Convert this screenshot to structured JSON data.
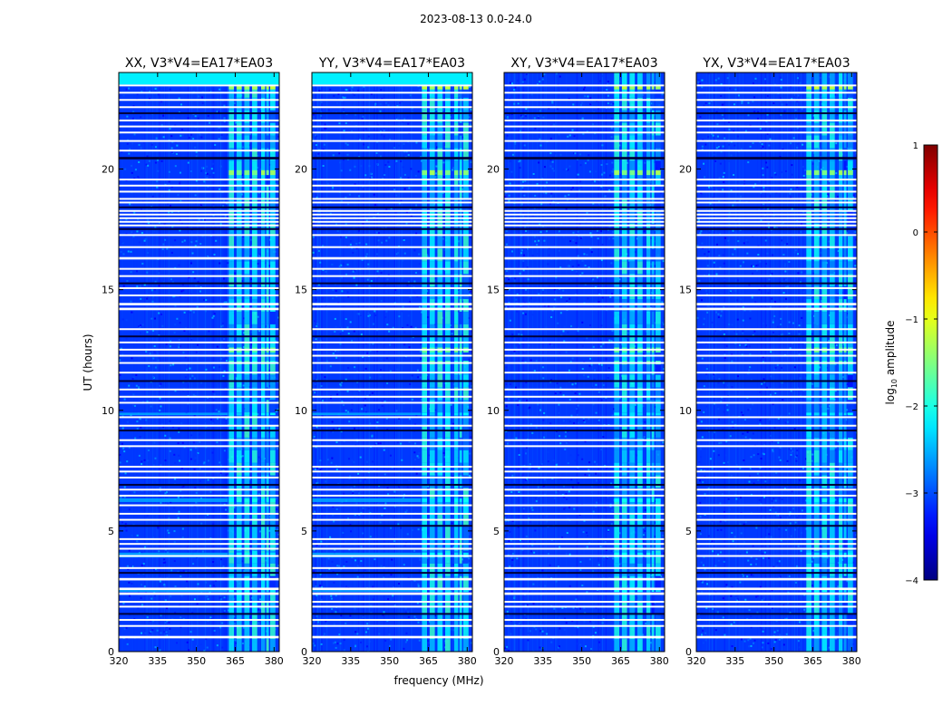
{
  "figure": {
    "suptitle": "2023-08-13 0.0-24.0"
  },
  "chart_data": {
    "type": "heatmap",
    "title": "2023-08-13 0.0-24.0",
    "xlabel": "frequency (MHz)",
    "ylabel": "UT (hours)",
    "xlim": [
      320,
      382
    ],
    "ylim": [
      0,
      24
    ],
    "xticks": [
      320,
      335,
      350,
      365,
      380
    ],
    "yticks": [
      0,
      5,
      10,
      15,
      20
    ],
    "panels": [
      {
        "title": "XX, V3*V4=EA17*EA03",
        "pol": "XX"
      },
      {
        "title": "YY, V3*V4=EA17*EA03",
        "pol": "YY"
      },
      {
        "title": "XY, V3*V4=EA17*EA03",
        "pol": "XY"
      },
      {
        "title": "YX, V3*V4=EA17*EA03",
        "pol": "YX"
      }
    ],
    "colorbar": {
      "label": "log10 amplitude",
      "label_main": "log",
      "label_sub": "10",
      "label_rest": " amplitude",
      "range": [
        -4,
        1
      ],
      "ticks": [
        1,
        0,
        -1,
        -2,
        -3,
        -4
      ],
      "tick_labels": [
        "1",
        "0",
        "−1",
        "−2",
        "−3",
        "−4"
      ],
      "colormap": "jet"
    },
    "background_level": -3.1,
    "rfi_bands_mhz": [
      [
        362.5,
        364.5
      ],
      [
        365.5,
        367.5
      ],
      [
        368.5,
        370.5
      ],
      [
        371.5,
        373.5
      ],
      [
        375.0,
        376.5
      ],
      [
        377.0,
        378.0
      ],
      [
        378.5,
        380.5
      ]
    ],
    "flagged_hours": [
      [
        0.55,
        0.65
      ],
      [
        1.05,
        1.1
      ],
      [
        1.3,
        1.35
      ],
      [
        1.55,
        1.6
      ],
      [
        1.85,
        1.9
      ],
      [
        2.05,
        2.1
      ],
      [
        2.35,
        2.45
      ],
      [
        2.55,
        2.65
      ],
      [
        2.95,
        3.05
      ],
      [
        3.25,
        3.3
      ],
      [
        3.45,
        3.5
      ],
      [
        3.95,
        4.0
      ],
      [
        4.25,
        4.3
      ],
      [
        4.45,
        4.5
      ],
      [
        4.65,
        4.7
      ],
      [
        5.2,
        5.25
      ],
      [
        5.45,
        5.5
      ],
      [
        5.7,
        5.75
      ],
      [
        6.05,
        6.1
      ],
      [
        6.45,
        6.5
      ],
      [
        6.7,
        6.75
      ],
      [
        6.9,
        6.95
      ],
      [
        7.2,
        7.25
      ],
      [
        7.45,
        7.5
      ],
      [
        7.65,
        7.7
      ],
      [
        8.5,
        8.55
      ],
      [
        8.75,
        8.8
      ],
      [
        9.15,
        9.2
      ],
      [
        9.35,
        9.4
      ],
      [
        9.7,
        9.75
      ],
      [
        10.3,
        10.35
      ],
      [
        10.55,
        10.6
      ],
      [
        10.85,
        10.9
      ],
      [
        11.2,
        11.25
      ],
      [
        11.55,
        11.6
      ],
      [
        11.95,
        12.0
      ],
      [
        12.25,
        12.3
      ],
      [
        12.5,
        12.55
      ],
      [
        12.8,
        12.85
      ],
      [
        13.05,
        13.1
      ],
      [
        13.35,
        13.4
      ],
      [
        14.15,
        14.25
      ],
      [
        14.35,
        14.45
      ],
      [
        14.75,
        14.8
      ],
      [
        15.05,
        15.1
      ],
      [
        15.25,
        15.3
      ],
      [
        15.55,
        15.6
      ],
      [
        15.85,
        15.9
      ],
      [
        16.25,
        16.35
      ],
      [
        16.75,
        16.8
      ],
      [
        17.25,
        17.3
      ],
      [
        17.5,
        17.55
      ],
      [
        17.65,
        17.7
      ],
      [
        17.8,
        17.85
      ],
      [
        17.95,
        18.0
      ],
      [
        18.1,
        18.15
      ],
      [
        18.25,
        18.3
      ],
      [
        18.4,
        18.45
      ],
      [
        18.6,
        18.65
      ],
      [
        18.75,
        18.8
      ],
      [
        19.05,
        19.1
      ],
      [
        19.3,
        19.35
      ],
      [
        19.55,
        19.6
      ],
      [
        20.4,
        20.5
      ],
      [
        20.75,
        20.8
      ],
      [
        21.15,
        21.2
      ],
      [
        21.5,
        21.55
      ],
      [
        21.75,
        21.8
      ],
      [
        22.0,
        22.05
      ],
      [
        22.3,
        22.35
      ],
      [
        22.55,
        22.6
      ],
      [
        22.85,
        22.9
      ],
      [
        23.15,
        23.2
      ],
      [
        23.45,
        23.5
      ]
    ],
    "bright_rows_hours": [
      [
        23.3,
        23.45,
        -1.4
      ],
      [
        19.75,
        19.95,
        -1.6
      ],
      [
        12.4,
        12.6,
        -1.8
      ],
      [
        11.9,
        12.05,
        -2.0
      ],
      [
        9.8,
        9.9,
        -2.4
      ],
      [
        6.2,
        6.35,
        -2.3
      ],
      [
        3.9,
        4.1,
        -2.3
      ],
      [
        2.5,
        2.55,
        -2.4
      ]
    ],
    "top_band_hours": [
      23.5,
      24.0
    ],
    "top_band_level": -2.2
  }
}
